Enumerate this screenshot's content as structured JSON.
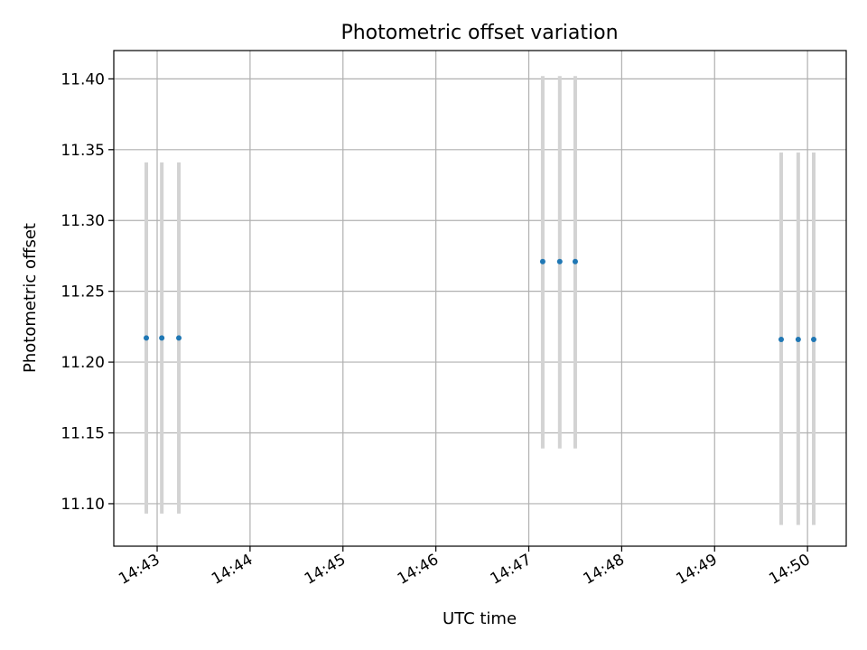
{
  "chart_data": {
    "type": "scatter",
    "title": "Photometric offset variation",
    "xlabel": "UTC time",
    "ylabel": "Photometric offset",
    "xlim": [
      "14:42:32",
      "14:50:25"
    ],
    "ylim": [
      11.07,
      11.42
    ],
    "x_ticks": [
      "14:43",
      "14:44",
      "14:45",
      "14:46",
      "14:47",
      "14:48",
      "14:49",
      "14:50"
    ],
    "y_ticks": [
      "11.10",
      "11.15",
      "11.20",
      "11.25",
      "11.30",
      "11.35",
      "11.40"
    ],
    "grid": true,
    "point_color": "#1f77b4",
    "errorbar_color": "#d3d3d3",
    "points": [
      {
        "x": "14:42:53",
        "y": 11.217,
        "yerr_low": 11.093,
        "yerr_high": 11.341
      },
      {
        "x": "14:43:03",
        "y": 11.217,
        "yerr_low": 11.093,
        "yerr_high": 11.341
      },
      {
        "x": "14:43:14",
        "y": 11.217,
        "yerr_low": 11.093,
        "yerr_high": 11.341
      },
      {
        "x": "14:47:09",
        "y": 11.271,
        "yerr_low": 11.139,
        "yerr_high": 11.402
      },
      {
        "x": "14:47:20",
        "y": 11.271,
        "yerr_low": 11.139,
        "yerr_high": 11.402
      },
      {
        "x": "14:47:30",
        "y": 11.271,
        "yerr_low": 11.139,
        "yerr_high": 11.402
      },
      {
        "x": "14:49:43",
        "y": 11.216,
        "yerr_low": 11.085,
        "yerr_high": 11.348
      },
      {
        "x": "14:49:54",
        "y": 11.216,
        "yerr_low": 11.085,
        "yerr_high": 11.348
      },
      {
        "x": "14:50:04",
        "y": 11.216,
        "yerr_low": 11.085,
        "yerr_high": 11.348
      }
    ]
  }
}
